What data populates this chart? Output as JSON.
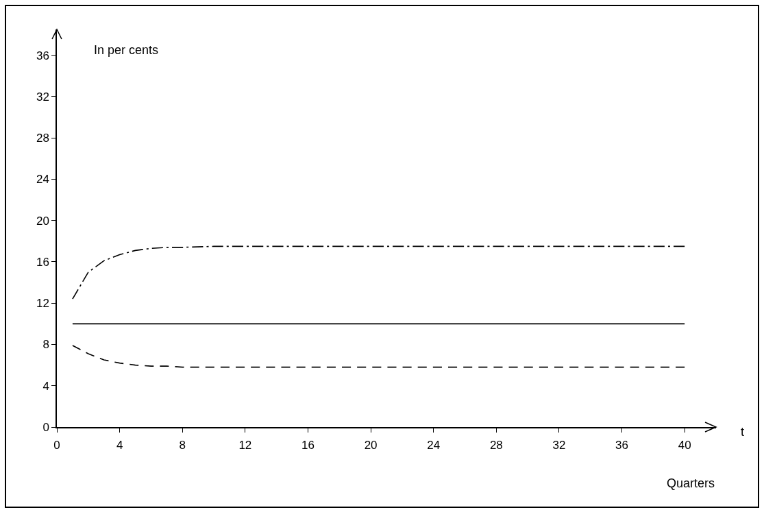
{
  "chart_data": {
    "type": "line",
    "xlabel": "Quarters",
    "ylabel": "In per cents",
    "annotations": [
      "t"
    ],
    "x": [
      1,
      2,
      3,
      4,
      5,
      6,
      7,
      8,
      10,
      12,
      40
    ],
    "xlim": [
      0,
      42
    ],
    "xticks": [
      0,
      4,
      8,
      12,
      16,
      20,
      24,
      28,
      32,
      36,
      40
    ],
    "ylim": [
      0,
      38.5
    ],
    "yticks": [
      0,
      4,
      8,
      12,
      16,
      20,
      24,
      28,
      32,
      36
    ],
    "series": [
      {
        "color": "#000000",
        "line_style": "dashdot",
        "values": [
          12.4,
          15.0,
          16.1,
          16.7,
          17.1,
          17.3,
          17.4,
          17.4,
          17.5,
          17.5,
          17.5
        ]
      },
      {
        "color": "#000000",
        "line_style": "solid",
        "values": [
          10,
          10,
          10,
          10,
          10,
          10,
          10,
          10,
          10,
          10,
          10
        ]
      },
      {
        "color": "#000000",
        "line_style": "dashed",
        "values": [
          7.9,
          7.1,
          6.5,
          6.2,
          6.0,
          5.9,
          5.9,
          5.8,
          5.8,
          5.8,
          5.8
        ]
      }
    ]
  }
}
